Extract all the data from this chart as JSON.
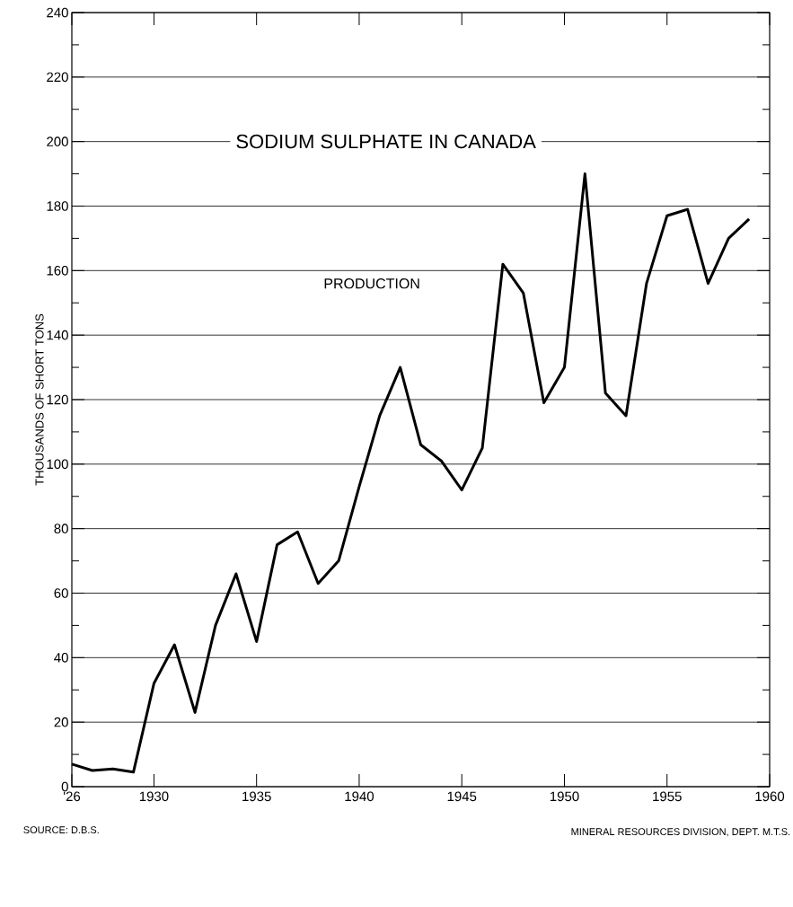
{
  "chart_data": {
    "type": "line",
    "title": "SODIUM SULPHATE IN CANADA",
    "ylabel": "THOUSANDS OF SHORT TONS",
    "x": [
      1926,
      1927,
      1928,
      1929,
      1930,
      1931,
      1932,
      1933,
      1934,
      1935,
      1936,
      1937,
      1938,
      1939,
      1940,
      1941,
      1942,
      1943,
      1944,
      1945,
      1946,
      1947,
      1948,
      1949,
      1950,
      1951,
      1952,
      1953,
      1954,
      1955,
      1956,
      1957,
      1958,
      1959
    ],
    "series": [
      {
        "name": "PRODUCTION",
        "color": "#000000",
        "values": [
          7,
          5,
          5.5,
          4.5,
          32,
          44,
          23,
          50,
          66,
          45,
          75,
          79,
          63,
          70,
          93,
          115,
          130,
          106,
          101,
          92,
          105,
          162,
          153,
          119,
          130,
          190,
          122,
          115,
          156,
          177,
          179,
          156,
          170,
          176
        ]
      }
    ],
    "xlim": [
      1926,
      1960
    ],
    "ylim": [
      0,
      240
    ],
    "xticks": [
      {
        "value": 1926,
        "label": "'26"
      },
      1930,
      1935,
      1940,
      1945,
      1950,
      1955,
      1960
    ],
    "yticks": [
      0,
      20,
      40,
      60,
      80,
      100,
      120,
      140,
      160,
      180,
      200,
      220,
      240
    ],
    "grid": "y",
    "annotations": [
      "SOURCE: D.B.S.",
      "MINERAL RESOURCES DIVISION, DEPT. M.T.S."
    ]
  }
}
